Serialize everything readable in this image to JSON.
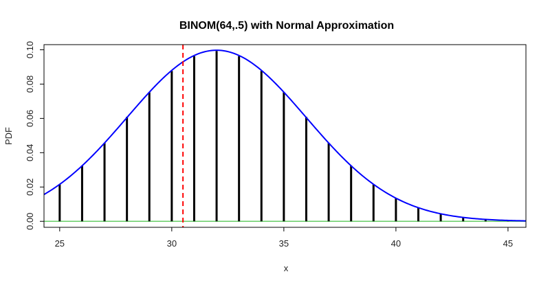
{
  "chart_data": {
    "type": "bar",
    "title": "BINOM(64,.5) with Normal Approximation",
    "xlabel": "x",
    "ylabel": "PDF",
    "xlim": [
      24.3,
      45.8
    ],
    "ylim": [
      -0.0035,
      0.103
    ],
    "x_ticks": [
      25,
      30,
      35,
      40,
      45
    ],
    "y_ticks": [
      0.0,
      0.02,
      0.04,
      0.06,
      0.08,
      0.1
    ],
    "y_tick_labels": [
      "0.00",
      "0.02",
      "0.04",
      "0.06",
      "0.08",
      "0.10"
    ],
    "grid": false,
    "series": [
      {
        "type": "bar",
        "x": [
          25,
          26,
          27,
          28,
          29,
          30,
          31,
          32,
          33,
          34,
          35,
          36,
          37,
          38,
          39,
          40,
          41,
          42,
          43,
          44,
          45
        ],
        "values": [
          0.0217,
          0.0325,
          0.0457,
          0.0609,
          0.0752,
          0.0877,
          0.0963,
          0.0993,
          0.0963,
          0.0877,
          0.0752,
          0.0609,
          0.0457,
          0.0325,
          0.0217,
          0.0135,
          0.0079,
          0.0043,
          0.0022,
          0.0011,
          0.0005
        ],
        "color": "#000000"
      },
      {
        "type": "line",
        "mean": 32,
        "sd": 4,
        "color": "#0000ff"
      },
      {
        "type": "vline",
        "x": 30.5,
        "color": "#ff0000",
        "style": "dashed"
      },
      {
        "type": "hline",
        "y": 0,
        "color": "#66cc66"
      }
    ]
  }
}
